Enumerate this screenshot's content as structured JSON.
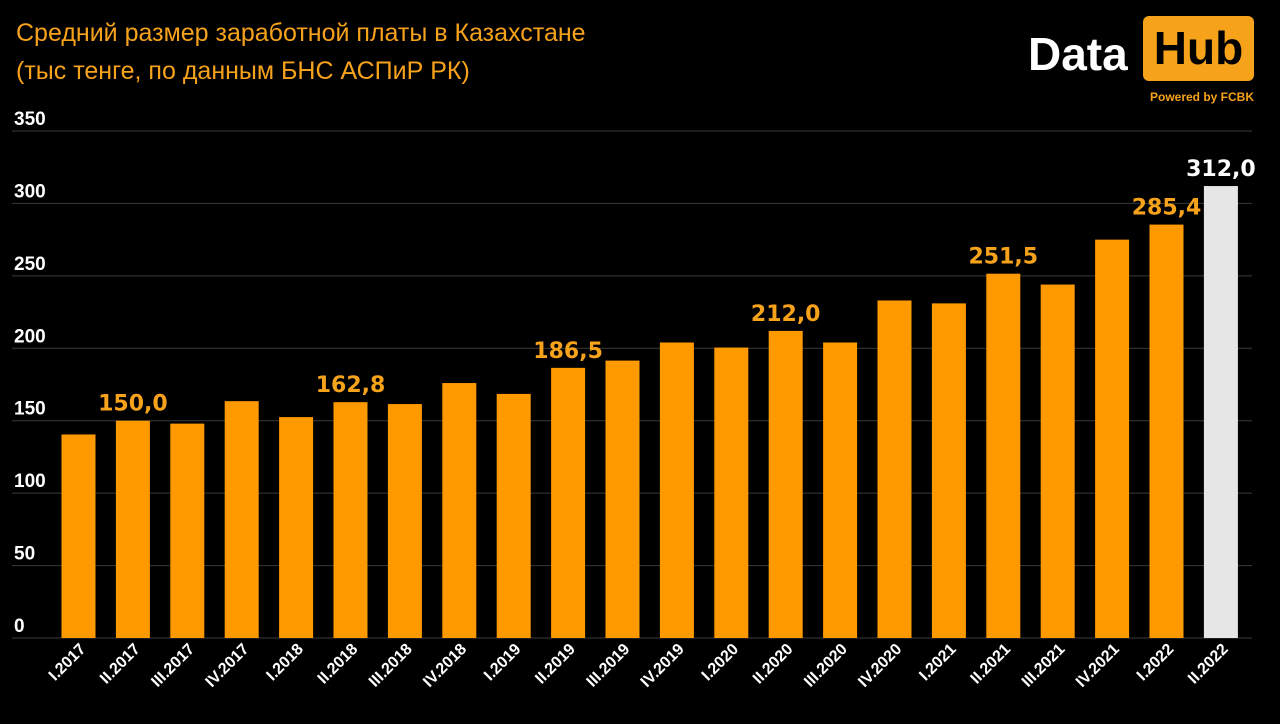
{
  "header": {
    "title_line1": "Средний размер заработной платы в Казахстане",
    "title_line2": "(тыс тенге, по данным БНС АСПиР РК)"
  },
  "logo": {
    "data_text": "Data",
    "hub_text": "Hub",
    "powered_text": "Powered by FCBK"
  },
  "colors": {
    "bar": "#FF9900",
    "highlight_bar": "#E6E6E6",
    "label": "#F7A21B",
    "highlight_label": "#FFFFFF",
    "grid": "#3A3A3A",
    "tick": "#FFFFFF"
  },
  "chart_data": {
    "type": "bar",
    "title": "Средний размер заработной платы в Казахстане (тыс тенге, по данным БНС АСПиР РК)",
    "xlabel": "",
    "ylabel": "",
    "ylim": [
      0,
      350
    ],
    "yticks": [
      0,
      50,
      100,
      150,
      200,
      250,
      300,
      350
    ],
    "grid": true,
    "categories": [
      "I.2017",
      "II.2017",
      "III.2017",
      "IV.2017",
      "I.2018",
      "II.2018",
      "III.2018",
      "IV.2018",
      "I.2019",
      "II.2019",
      "III.2019",
      "IV.2019",
      "I.2020",
      "II.2020",
      "III.2020",
      "IV.2020",
      "I.2021",
      "II.2021",
      "III.2021",
      "IV.2021",
      "I.2022",
      "II.2022"
    ],
    "values": [
      140.5,
      150.0,
      148.0,
      163.5,
      152.5,
      162.8,
      161.5,
      176.0,
      168.5,
      186.5,
      191.5,
      204.0,
      200.5,
      212.0,
      204.0,
      233.0,
      231.0,
      251.5,
      244.0,
      275.0,
      285.4,
      312.0
    ],
    "data_labels": [
      {
        "index": 1,
        "text": "150,0"
      },
      {
        "index": 5,
        "text": "162,8"
      },
      {
        "index": 9,
        "text": "186,5"
      },
      {
        "index": 13,
        "text": "212,0"
      },
      {
        "index": 17,
        "text": "251,5"
      },
      {
        "index": 20,
        "text": "285,4"
      },
      {
        "index": 21,
        "text": "312,0"
      }
    ],
    "highlight_index": 21
  }
}
